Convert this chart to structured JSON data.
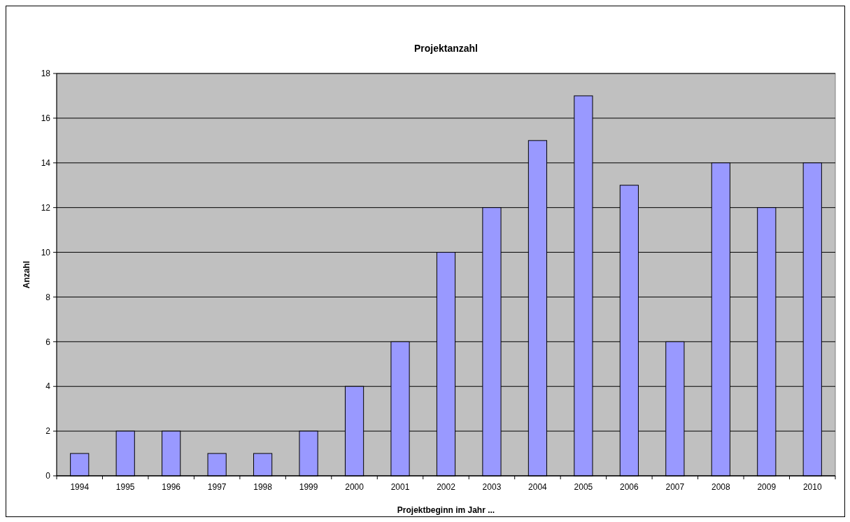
{
  "chart_data": {
    "type": "bar",
    "title": "Projektanzahl",
    "xlabel": "Projektbeginn im Jahr ...",
    "ylabel": "Anzahl",
    "categories": [
      "1994",
      "1995",
      "1996",
      "1997",
      "1998",
      "1999",
      "2000",
      "2001",
      "2002",
      "2003",
      "2004",
      "2005",
      "2006",
      "2007",
      "2008",
      "2009",
      "2010"
    ],
    "values": [
      1,
      2,
      2,
      1,
      1,
      2,
      4,
      6,
      10,
      12,
      15,
      17,
      13,
      6,
      14,
      12,
      14
    ],
    "color": "#9999ff",
    "ylim": [
      0,
      18
    ],
    "yticks": [
      0,
      2,
      4,
      6,
      8,
      10,
      12,
      14,
      16,
      18
    ],
    "grid": "y"
  }
}
